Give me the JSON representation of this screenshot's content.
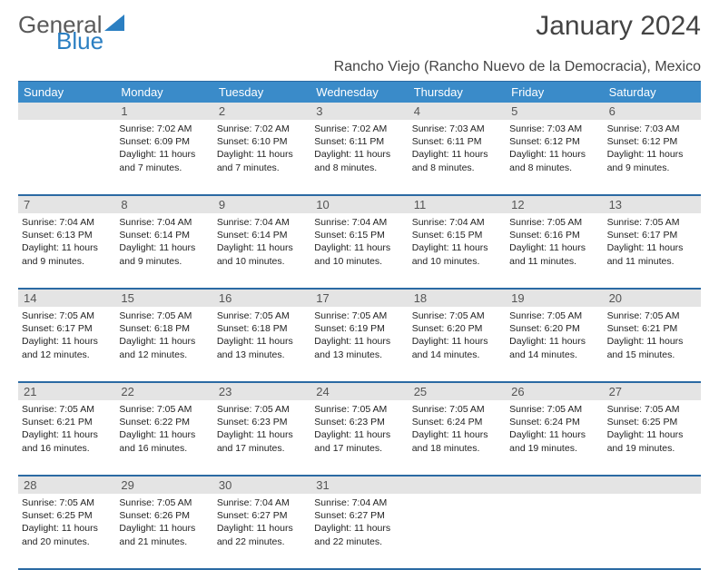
{
  "brand": {
    "part1": "General",
    "part2": "Blue"
  },
  "title": "January 2024",
  "location": "Rancho Viejo (Rancho Nuevo de la Democracia), Mexico",
  "colors": {
    "header_bg": "#3a8bc9",
    "header_text": "#ffffff",
    "border": "#2b6aa3",
    "daynum_bg": "#e4e4e4",
    "text": "#222222",
    "logo_gray": "#5a5a5a",
    "logo_blue": "#2b7fc2"
  },
  "day_names": [
    "Sunday",
    "Monday",
    "Tuesday",
    "Wednesday",
    "Thursday",
    "Friday",
    "Saturday"
  ],
  "weeks": [
    {
      "nums": [
        "",
        "1",
        "2",
        "3",
        "4",
        "5",
        "6"
      ],
      "cells": [
        {
          "sunrise": "",
          "sunset": "",
          "daylight1": "",
          "daylight2": ""
        },
        {
          "sunrise": "Sunrise: 7:02 AM",
          "sunset": "Sunset: 6:09 PM",
          "daylight1": "Daylight: 11 hours",
          "daylight2": "and 7 minutes."
        },
        {
          "sunrise": "Sunrise: 7:02 AM",
          "sunset": "Sunset: 6:10 PM",
          "daylight1": "Daylight: 11 hours",
          "daylight2": "and 7 minutes."
        },
        {
          "sunrise": "Sunrise: 7:02 AM",
          "sunset": "Sunset: 6:11 PM",
          "daylight1": "Daylight: 11 hours",
          "daylight2": "and 8 minutes."
        },
        {
          "sunrise": "Sunrise: 7:03 AM",
          "sunset": "Sunset: 6:11 PM",
          "daylight1": "Daylight: 11 hours",
          "daylight2": "and 8 minutes."
        },
        {
          "sunrise": "Sunrise: 7:03 AM",
          "sunset": "Sunset: 6:12 PM",
          "daylight1": "Daylight: 11 hours",
          "daylight2": "and 8 minutes."
        },
        {
          "sunrise": "Sunrise: 7:03 AM",
          "sunset": "Sunset: 6:12 PM",
          "daylight1": "Daylight: 11 hours",
          "daylight2": "and 9 minutes."
        }
      ]
    },
    {
      "nums": [
        "7",
        "8",
        "9",
        "10",
        "11",
        "12",
        "13"
      ],
      "cells": [
        {
          "sunrise": "Sunrise: 7:04 AM",
          "sunset": "Sunset: 6:13 PM",
          "daylight1": "Daylight: 11 hours",
          "daylight2": "and 9 minutes."
        },
        {
          "sunrise": "Sunrise: 7:04 AM",
          "sunset": "Sunset: 6:14 PM",
          "daylight1": "Daylight: 11 hours",
          "daylight2": "and 9 minutes."
        },
        {
          "sunrise": "Sunrise: 7:04 AM",
          "sunset": "Sunset: 6:14 PM",
          "daylight1": "Daylight: 11 hours",
          "daylight2": "and 10 minutes."
        },
        {
          "sunrise": "Sunrise: 7:04 AM",
          "sunset": "Sunset: 6:15 PM",
          "daylight1": "Daylight: 11 hours",
          "daylight2": "and 10 minutes."
        },
        {
          "sunrise": "Sunrise: 7:04 AM",
          "sunset": "Sunset: 6:15 PM",
          "daylight1": "Daylight: 11 hours",
          "daylight2": "and 10 minutes."
        },
        {
          "sunrise": "Sunrise: 7:05 AM",
          "sunset": "Sunset: 6:16 PM",
          "daylight1": "Daylight: 11 hours",
          "daylight2": "and 11 minutes."
        },
        {
          "sunrise": "Sunrise: 7:05 AM",
          "sunset": "Sunset: 6:17 PM",
          "daylight1": "Daylight: 11 hours",
          "daylight2": "and 11 minutes."
        }
      ]
    },
    {
      "nums": [
        "14",
        "15",
        "16",
        "17",
        "18",
        "19",
        "20"
      ],
      "cells": [
        {
          "sunrise": "Sunrise: 7:05 AM",
          "sunset": "Sunset: 6:17 PM",
          "daylight1": "Daylight: 11 hours",
          "daylight2": "and 12 minutes."
        },
        {
          "sunrise": "Sunrise: 7:05 AM",
          "sunset": "Sunset: 6:18 PM",
          "daylight1": "Daylight: 11 hours",
          "daylight2": "and 12 minutes."
        },
        {
          "sunrise": "Sunrise: 7:05 AM",
          "sunset": "Sunset: 6:18 PM",
          "daylight1": "Daylight: 11 hours",
          "daylight2": "and 13 minutes."
        },
        {
          "sunrise": "Sunrise: 7:05 AM",
          "sunset": "Sunset: 6:19 PM",
          "daylight1": "Daylight: 11 hours",
          "daylight2": "and 13 minutes."
        },
        {
          "sunrise": "Sunrise: 7:05 AM",
          "sunset": "Sunset: 6:20 PM",
          "daylight1": "Daylight: 11 hours",
          "daylight2": "and 14 minutes."
        },
        {
          "sunrise": "Sunrise: 7:05 AM",
          "sunset": "Sunset: 6:20 PM",
          "daylight1": "Daylight: 11 hours",
          "daylight2": "and 14 minutes."
        },
        {
          "sunrise": "Sunrise: 7:05 AM",
          "sunset": "Sunset: 6:21 PM",
          "daylight1": "Daylight: 11 hours",
          "daylight2": "and 15 minutes."
        }
      ]
    },
    {
      "nums": [
        "21",
        "22",
        "23",
        "24",
        "25",
        "26",
        "27"
      ],
      "cells": [
        {
          "sunrise": "Sunrise: 7:05 AM",
          "sunset": "Sunset: 6:21 PM",
          "daylight1": "Daylight: 11 hours",
          "daylight2": "and 16 minutes."
        },
        {
          "sunrise": "Sunrise: 7:05 AM",
          "sunset": "Sunset: 6:22 PM",
          "daylight1": "Daylight: 11 hours",
          "daylight2": "and 16 minutes."
        },
        {
          "sunrise": "Sunrise: 7:05 AM",
          "sunset": "Sunset: 6:23 PM",
          "daylight1": "Daylight: 11 hours",
          "daylight2": "and 17 minutes."
        },
        {
          "sunrise": "Sunrise: 7:05 AM",
          "sunset": "Sunset: 6:23 PM",
          "daylight1": "Daylight: 11 hours",
          "daylight2": "and 17 minutes."
        },
        {
          "sunrise": "Sunrise: 7:05 AM",
          "sunset": "Sunset: 6:24 PM",
          "daylight1": "Daylight: 11 hours",
          "daylight2": "and 18 minutes."
        },
        {
          "sunrise": "Sunrise: 7:05 AM",
          "sunset": "Sunset: 6:24 PM",
          "daylight1": "Daylight: 11 hours",
          "daylight2": "and 19 minutes."
        },
        {
          "sunrise": "Sunrise: 7:05 AM",
          "sunset": "Sunset: 6:25 PM",
          "daylight1": "Daylight: 11 hours",
          "daylight2": "and 19 minutes."
        }
      ]
    },
    {
      "nums": [
        "28",
        "29",
        "30",
        "31",
        "",
        "",
        ""
      ],
      "cells": [
        {
          "sunrise": "Sunrise: 7:05 AM",
          "sunset": "Sunset: 6:25 PM",
          "daylight1": "Daylight: 11 hours",
          "daylight2": "and 20 minutes."
        },
        {
          "sunrise": "Sunrise: 7:05 AM",
          "sunset": "Sunset: 6:26 PM",
          "daylight1": "Daylight: 11 hours",
          "daylight2": "and 21 minutes."
        },
        {
          "sunrise": "Sunrise: 7:04 AM",
          "sunset": "Sunset: 6:27 PM",
          "daylight1": "Daylight: 11 hours",
          "daylight2": "and 22 minutes."
        },
        {
          "sunrise": "Sunrise: 7:04 AM",
          "sunset": "Sunset: 6:27 PM",
          "daylight1": "Daylight: 11 hours",
          "daylight2": "and 22 minutes."
        },
        {
          "sunrise": "",
          "sunset": "",
          "daylight1": "",
          "daylight2": ""
        },
        {
          "sunrise": "",
          "sunset": "",
          "daylight1": "",
          "daylight2": ""
        },
        {
          "sunrise": "",
          "sunset": "",
          "daylight1": "",
          "daylight2": ""
        }
      ]
    }
  ]
}
